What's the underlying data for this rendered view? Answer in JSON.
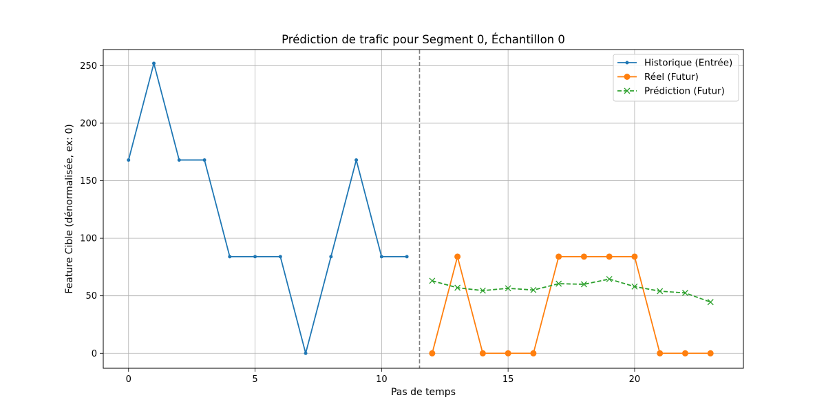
{
  "chart_data": {
    "type": "line",
    "title": "Prédiction de trafic pour Segment 0, Échantillon 0",
    "xlabel": "Pas de temps",
    "ylabel": "Feature Cible (dénormalisée, ex: 0)",
    "xlim": [
      -1,
      24.3
    ],
    "ylim": [
      -13,
      264
    ],
    "xticks": [
      0,
      5,
      10,
      15,
      20
    ],
    "yticks": [
      0,
      50,
      100,
      150,
      200,
      250
    ],
    "grid": true,
    "legend_position": "top-right",
    "divider": {
      "x": 11.5,
      "color": "#7f7f7f",
      "style": "dashed"
    },
    "series": [
      {
        "name": "Historique (Entrée)",
        "color": "#1f77b4",
        "marker": "dot",
        "linestyle": "solid",
        "x": [
          0,
          1,
          2,
          3,
          4,
          5,
          6,
          7,
          8,
          9,
          10,
          11
        ],
        "values": [
          168,
          252,
          168,
          168,
          84,
          84,
          84,
          0,
          84,
          168,
          84,
          84
        ]
      },
      {
        "name": "Réel (Futur)",
        "color": "#ff7f0e",
        "marker": "circle",
        "linestyle": "solid",
        "x": [
          12,
          13,
          14,
          15,
          16,
          17,
          18,
          19,
          20,
          21,
          22,
          23
        ],
        "values": [
          0,
          84,
          0,
          0,
          0,
          84,
          84,
          84,
          84,
          0,
          0,
          0
        ]
      },
      {
        "name": "Prédiction (Futur)",
        "color": "#2ca02c",
        "marker": "x",
        "linestyle": "dashed",
        "x": [
          12,
          13,
          14,
          15,
          16,
          17,
          18,
          19,
          20,
          21,
          22,
          23
        ],
        "values": [
          63,
          57,
          54.5,
          56.5,
          55,
          60.5,
          60,
          64.5,
          58,
          54,
          52.5,
          44.5
        ]
      }
    ]
  }
}
